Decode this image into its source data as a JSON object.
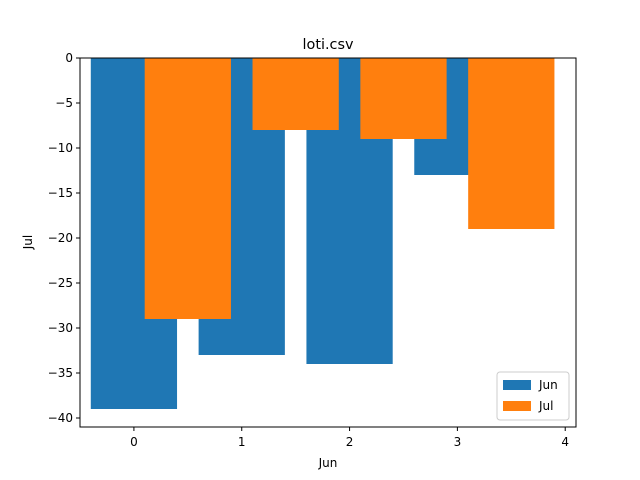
{
  "chart_data": {
    "type": "bar",
    "title": "loti.csv",
    "xlabel": "Jun",
    "ylabel": "Jul",
    "xlim": [
      -0.5,
      4.1
    ],
    "ylim": [
      -41,
      0
    ],
    "xticks": [
      0,
      1,
      2,
      3,
      4
    ],
    "yticks": [
      0,
      -5,
      -10,
      -15,
      -20,
      -25,
      -30,
      -35,
      -40
    ],
    "grid": false,
    "legend_position": "lower-right",
    "series": [
      {
        "name": "Jun",
        "color": "#1f77b4",
        "x": [
          0,
          1,
          2,
          3
        ],
        "values": [
          -39,
          -33,
          -34,
          -13
        ]
      },
      {
        "name": "Jul",
        "color": "#ff7f0e",
        "x": [
          0.5,
          1.5,
          2.5,
          3.5
        ],
        "values": [
          -29,
          -8,
          -9,
          -19
        ]
      }
    ],
    "bar_width": 0.8
  }
}
